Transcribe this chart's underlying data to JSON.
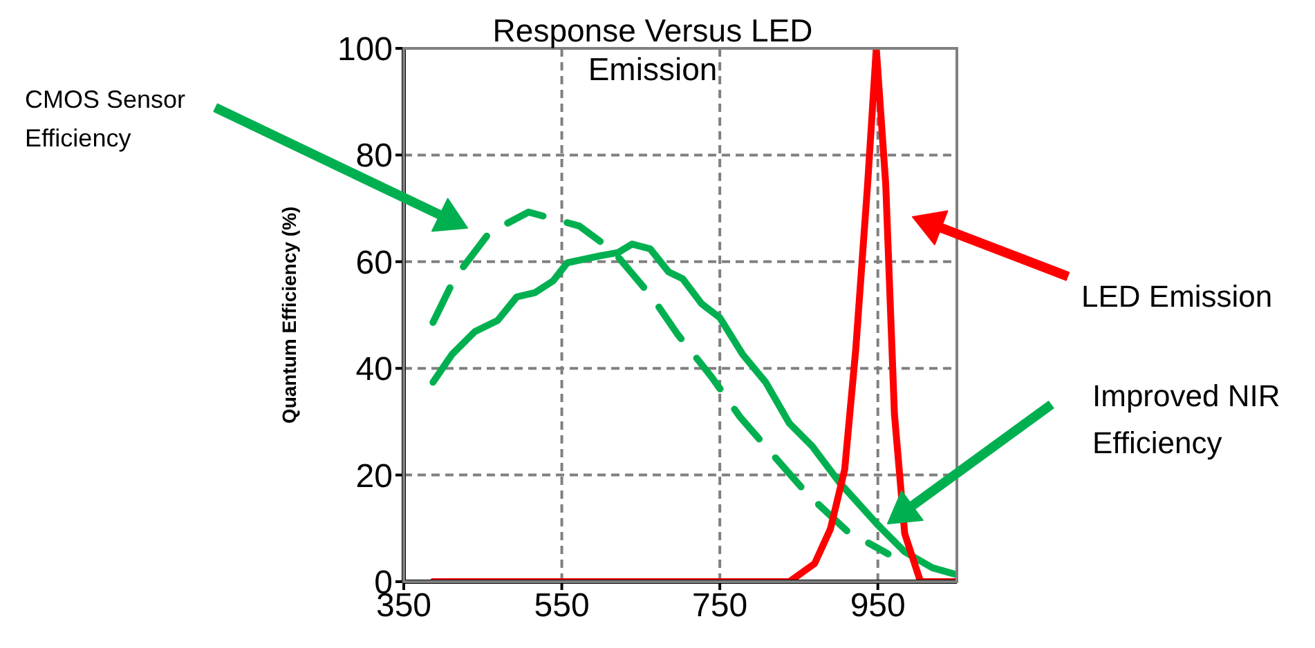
{
  "chart_data": {
    "type": "line",
    "title": "Response Versus LED Emission",
    "ylabel": "Quantum Efficiency (%)",
    "xlim": [
      350,
      1050
    ],
    "xticks": [
      350,
      550,
      750,
      950
    ],
    "ylim": [
      0,
      100
    ],
    "yticks": [
      0,
      20,
      40,
      60,
      80,
      100
    ],
    "grid": true,
    "legend": false,
    "marker": "none",
    "series": [
      {
        "color": "#00b050",
        "line_style": "solid",
        "x": [
          387,
          411,
          440,
          469,
          493,
          516,
          539,
          557,
          598,
          621,
          639,
          662,
          685,
          703,
          727,
          750,
          779,
          808,
          838,
          867,
          902,
          949,
          984,
          1019,
          1050
        ],
        "values": [
          37.4,
          42.6,
          46.9,
          49,
          53.4,
          54.2,
          56.4,
          59.8,
          61.1,
          61.7,
          63.3,
          62.4,
          58.1,
          56.8,
          52.1,
          49.5,
          42.6,
          37.4,
          29.7,
          25.4,
          18.5,
          10.8,
          5.6,
          2.6,
          1.3
        ]
      },
      {
        "color": "#00b050",
        "line_style": "dashed",
        "x": [
          387,
          414,
          458,
          508,
          540,
          572,
          615,
          664,
          696,
          740,
          775,
          823,
          861,
          911,
          963
        ],
        "values": [
          48.6,
          56.8,
          65.4,
          69.3,
          68,
          66.7,
          62,
          53.4,
          46.5,
          38.3,
          31,
          22.8,
          16.4,
          9.5,
          5.2
        ]
      },
      {
        "color": "#ff0000",
        "line_style": "solid",
        "x": [
          387,
          838,
          870,
          890,
          908,
          922,
          937,
          948,
          960,
          971,
          984,
          1004,
          1050
        ],
        "values": [
          0,
          0,
          3.4,
          9.9,
          21,
          43.5,
          74.4,
          100,
          74.4,
          31.4,
          9,
          0,
          0
        ]
      }
    ],
    "annotations": [
      "CMOS Sensor Efficiency",
      "LED Emission",
      "Improved NIR Efficiency"
    ]
  }
}
